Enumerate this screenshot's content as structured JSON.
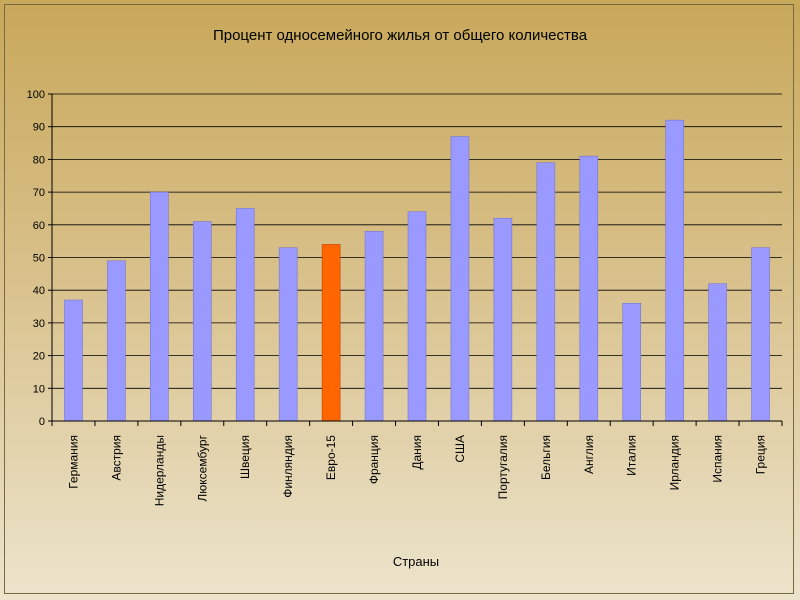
{
  "chart_data": {
    "type": "bar",
    "title": "Процент односемейного жилья от общего количества",
    "xlabel": "Страны",
    "ylabel": "",
    "ylim": [
      0,
      100
    ],
    "yticks": [
      0,
      10,
      20,
      30,
      40,
      50,
      60,
      70,
      80,
      90,
      100
    ],
    "grid": true,
    "legend": "none",
    "categories": [
      "Германия",
      "Австрия",
      "Нидерланды",
      "Люксембург",
      "Швеция",
      "Финляндия",
      "Евро-15",
      "Франция",
      "Дания",
      "США",
      "Португалия",
      "Бельгия",
      "Англия",
      "Италия",
      "Ирландия",
      "Испания",
      "Греция"
    ],
    "values": [
      37,
      49,
      70,
      61,
      65,
      53,
      54,
      58,
      64,
      87,
      62,
      79,
      81,
      36,
      92,
      42,
      53
    ],
    "highlight_category": "Евро-15",
    "colors": {
      "bar": "#9999ff",
      "highlight": "#ff6600",
      "highlight_border": "#c04000",
      "grid": "#000000"
    }
  }
}
